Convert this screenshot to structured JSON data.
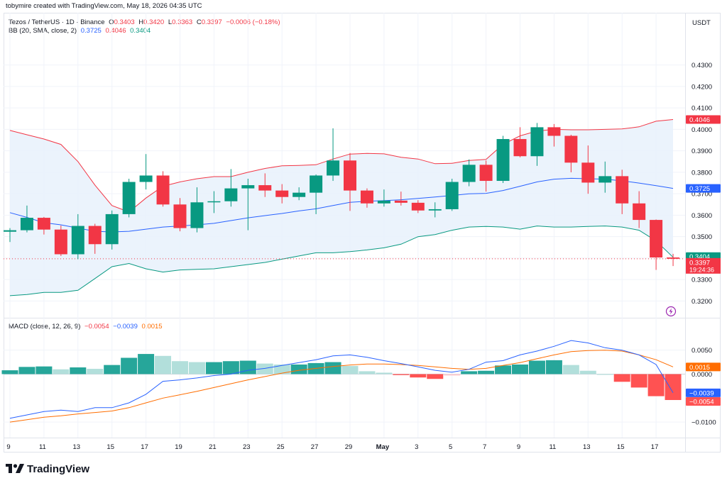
{
  "credit": "tobymire created with TradingView.com, May 18, 2026 04:35 UTC",
  "brand": "TradingView",
  "currency": "USDT",
  "symbol_line": {
    "name": "Tezos / TetherUS · 1D · Binance",
    "o_label": "O",
    "o": "0.3403",
    "h_label": "H",
    "h": "0.3420",
    "l_label": "L",
    "l": "0.3363",
    "c_label": "C",
    "c": "0.3397",
    "change": "−0.0006 (−0.18%)"
  },
  "bb_line": {
    "name": "BB (20, SMA, close, 2)",
    "basis": "0.3725",
    "upper": "0.4046",
    "lower": "0.3404"
  },
  "macd_line": {
    "name": "MACD (close, 12, 26, 9)",
    "histogram": "−0.0054",
    "macd": "−0.0039",
    "signal": "0.0015"
  },
  "colors": {
    "up": "#26a69a",
    "up_body": "#089981",
    "down": "#f23645",
    "basis": "#2962ff",
    "upper": "#f23645",
    "lower": "#089981",
    "band_fill": "#e8f1fb",
    "macd": "#2962ff",
    "signal": "#ff6d00",
    "hist_up_strong": "#26a69a",
    "hist_up_weak": "#b2dfdb",
    "hist_down_strong": "#ff5252",
    "hist_down_weak": "#ffcdd2"
  },
  "price_badges": {
    "upper": "0.4046",
    "basis": "0.3725",
    "lower": "0.3404",
    "last": "0.3397",
    "countdown": "19:24:36"
  },
  "macd_badges": {
    "signal": "0.0015",
    "macd": "−0.0039",
    "histogram": "−0.0054"
  },
  "x_ticks": [
    "9",
    "11",
    "13",
    "15",
    "17",
    "19",
    "21",
    "23",
    "25",
    "27",
    "29",
    "May",
    "3",
    "5",
    "7",
    "9",
    "11",
    "13",
    "15",
    "17"
  ],
  "chart_data": [
    {
      "type": "candlestick",
      "title": "Tezos / TetherUS · 1D · Binance",
      "ylim": [
        0.317,
        0.437
      ],
      "yticks": [
        "0.4300",
        "0.4200",
        "0.4100",
        "0.4000",
        "0.3900",
        "0.3800",
        "0.3700",
        "0.3600",
        "0.3500",
        "0.3400",
        "0.3300",
        "0.3200"
      ],
      "dates": [
        "Apr 9",
        "Apr 10",
        "Apr 11",
        "Apr 12",
        "Apr 13",
        "Apr 14",
        "Apr 15",
        "Apr 16",
        "Apr 17",
        "Apr 18",
        "Apr 19",
        "Apr 20",
        "Apr 21",
        "Apr 22",
        "Apr 23",
        "Apr 24",
        "Apr 25",
        "Apr 26",
        "Apr 27",
        "Apr 28",
        "Apr 29",
        "Apr 30",
        "May 1",
        "May 2",
        "May 3",
        "May 4",
        "May 5",
        "May 6",
        "May 7",
        "May 8",
        "May 9",
        "May 10",
        "May 11",
        "May 12",
        "May 13",
        "May 14",
        "May 15",
        "May 16",
        "May 17",
        "May 18"
      ],
      "candles": [
        [
          0.3523,
          0.354,
          0.3475,
          0.353
        ],
        [
          0.353,
          0.3645,
          0.352,
          0.3588
        ],
        [
          0.3588,
          0.3592,
          0.351,
          0.3533
        ],
        [
          0.3533,
          0.3552,
          0.341,
          0.3418
        ],
        [
          0.3418,
          0.3605,
          0.3395,
          0.355
        ],
        [
          0.355,
          0.356,
          0.342,
          0.3465
        ],
        [
          0.3465,
          0.3622,
          0.344,
          0.3605
        ],
        [
          0.3605,
          0.377,
          0.359,
          0.3755
        ],
        [
          0.3755,
          0.3885,
          0.372,
          0.3785
        ],
        [
          0.3785,
          0.3805,
          0.364,
          0.365
        ],
        [
          0.365,
          0.368,
          0.3525,
          0.354
        ],
        [
          0.354,
          0.373,
          0.352,
          0.366
        ],
        [
          0.366,
          0.3712,
          0.361,
          0.3665
        ],
        [
          0.3665,
          0.3815,
          0.364,
          0.3725
        ],
        [
          0.3725,
          0.377,
          0.353,
          0.374
        ],
        [
          0.374,
          0.3795,
          0.3685,
          0.3715
        ],
        [
          0.3715,
          0.3745,
          0.3655,
          0.3685
        ],
        [
          0.3685,
          0.373,
          0.367,
          0.3705
        ],
        [
          0.3705,
          0.379,
          0.3605,
          0.3785
        ],
        [
          0.3785,
          0.4005,
          0.376,
          0.3855
        ],
        [
          0.3855,
          0.389,
          0.362,
          0.3715
        ],
        [
          0.3715,
          0.3725,
          0.3635,
          0.3655
        ],
        [
          0.3655,
          0.372,
          0.364,
          0.3668
        ],
        [
          0.3668,
          0.371,
          0.3645,
          0.3658
        ],
        [
          0.3658,
          0.367,
          0.361,
          0.3622
        ],
        [
          0.3622,
          0.366,
          0.359,
          0.3628
        ],
        [
          0.3628,
          0.377,
          0.362,
          0.3755
        ],
        [
          0.3755,
          0.386,
          0.3735,
          0.3835
        ],
        [
          0.3835,
          0.3855,
          0.371,
          0.376
        ],
        [
          0.376,
          0.397,
          0.375,
          0.3955
        ],
        [
          0.3955,
          0.401,
          0.387,
          0.3875
        ],
        [
          0.3875,
          0.403,
          0.383,
          0.401
        ],
        [
          0.401,
          0.4025,
          0.392,
          0.397
        ],
        [
          0.397,
          0.3975,
          0.38,
          0.3845
        ],
        [
          0.3845,
          0.3925,
          0.37,
          0.3752
        ],
        [
          0.3752,
          0.385,
          0.3705,
          0.3782
        ],
        [
          0.3782,
          0.3812,
          0.3605,
          0.3655
        ],
        [
          0.3655,
          0.3712,
          0.354,
          0.3578
        ],
        [
          0.3578,
          0.358,
          0.3345,
          0.3403
        ],
        [
          0.3403,
          0.342,
          0.3363,
          0.3397
        ]
      ],
      "bb_upper": [
        0.3995,
        0.3975,
        0.3955,
        0.393,
        0.385,
        0.374,
        0.3645,
        0.3615,
        0.368,
        0.3735,
        0.3755,
        0.377,
        0.378,
        0.378,
        0.38,
        0.3818,
        0.383,
        0.3832,
        0.3835,
        0.3862,
        0.3885,
        0.3888,
        0.3886,
        0.387,
        0.3862,
        0.384,
        0.3842,
        0.3855,
        0.386,
        0.393,
        0.397,
        0.3992,
        0.4,
        0.3998,
        0.3998,
        0.4,
        0.4002,
        0.4012,
        0.4038,
        0.4046
      ],
      "bb_basis": [
        0.3612,
        0.359,
        0.3565,
        0.3555,
        0.354,
        0.3525,
        0.3522,
        0.3525,
        0.3535,
        0.3545,
        0.355,
        0.3555,
        0.3562,
        0.3575,
        0.3588,
        0.3598,
        0.3608,
        0.362,
        0.363,
        0.3645,
        0.366,
        0.3665,
        0.3668,
        0.3672,
        0.3678,
        0.3685,
        0.3692,
        0.37,
        0.3702,
        0.3715,
        0.3735,
        0.3755,
        0.3768,
        0.3772,
        0.377,
        0.3768,
        0.376,
        0.375,
        0.3738,
        0.3725
      ],
      "bb_lower": [
        0.3225,
        0.323,
        0.324,
        0.324,
        0.325,
        0.3305,
        0.336,
        0.3375,
        0.335,
        0.3335,
        0.3345,
        0.3348,
        0.335,
        0.336,
        0.337,
        0.338,
        0.3395,
        0.341,
        0.3425,
        0.3425,
        0.343,
        0.3438,
        0.3448,
        0.3465,
        0.35,
        0.351,
        0.353,
        0.3545,
        0.3548,
        0.3545,
        0.3535,
        0.355,
        0.3545,
        0.3545,
        0.3548,
        0.355,
        0.3545,
        0.353,
        0.348,
        0.3404
      ]
    },
    {
      "type": "macd",
      "title": "MACD (close, 12, 26, 9)",
      "ylim": [
        -0.0125,
        0.0085
      ],
      "yticks": [
        "0.0050",
        "0.0000",
        "−0.0100"
      ],
      "dates": [
        "Apr 9",
        "Apr 10",
        "Apr 11",
        "Apr 12",
        "Apr 13",
        "Apr 14",
        "Apr 15",
        "Apr 16",
        "Apr 17",
        "Apr 18",
        "Apr 19",
        "Apr 20",
        "Apr 21",
        "Apr 22",
        "Apr 23",
        "Apr 24",
        "Apr 25",
        "Apr 26",
        "Apr 27",
        "Apr 28",
        "Apr 29",
        "Apr 30",
        "May 1",
        "May 2",
        "May 3",
        "May 4",
        "May 5",
        "May 6",
        "May 7",
        "May 8",
        "May 9",
        "May 10",
        "May 11",
        "May 12",
        "May 13",
        "May 14",
        "May 15",
        "May 16",
        "May 17",
        "May 18"
      ],
      "histogram": [
        0.0008,
        0.0015,
        0.0016,
        0.001,
        0.0014,
        0.0011,
        0.0019,
        0.0034,
        0.0042,
        0.0038,
        0.0027,
        0.0025,
        0.0025,
        0.0027,
        0.0028,
        0.0022,
        0.002,
        0.002,
        0.0023,
        0.0025,
        0.0017,
        0.0006,
        0.0003,
        -0.0002,
        -0.0007,
        -0.001,
        -0.0003,
        0.0006,
        0.0007,
        0.0018,
        0.002,
        0.0028,
        0.0029,
        0.0019,
        0.0007,
        0.0,
        -0.0016,
        -0.0028,
        -0.0046,
        -0.0054
      ],
      "macd": [
        -0.0092,
        -0.0085,
        -0.0078,
        -0.0075,
        -0.0078,
        -0.007,
        -0.007,
        -0.006,
        -0.0042,
        -0.0015,
        -0.0012,
        -0.0008,
        -0.0003,
        0.0,
        0.0008,
        0.0012,
        0.0018,
        0.0024,
        0.003,
        0.0038,
        0.004,
        0.0035,
        0.0028,
        0.0022,
        0.0015,
        0.0008,
        0.0004,
        0.001,
        0.0025,
        0.0028,
        0.004,
        0.0048,
        0.0058,
        0.007,
        0.0065,
        0.0055,
        0.005,
        0.004,
        0.002,
        -0.0039
      ],
      "signal": [
        -0.01,
        -0.0095,
        -0.009,
        -0.0087,
        -0.0083,
        -0.008,
        -0.0077,
        -0.007,
        -0.006,
        -0.005,
        -0.0043,
        -0.0036,
        -0.0028,
        -0.002,
        -0.0012,
        -0.0005,
        0.0002,
        0.0008,
        0.0012,
        0.0016,
        0.0019,
        0.0021,
        0.0021,
        0.002,
        0.0018,
        0.0015,
        0.0012,
        0.001,
        0.0012,
        0.0018,
        0.0024,
        0.0032,
        0.004,
        0.0047,
        0.0049,
        0.005,
        0.0048,
        0.004,
        0.003,
        0.0015
      ]
    }
  ]
}
